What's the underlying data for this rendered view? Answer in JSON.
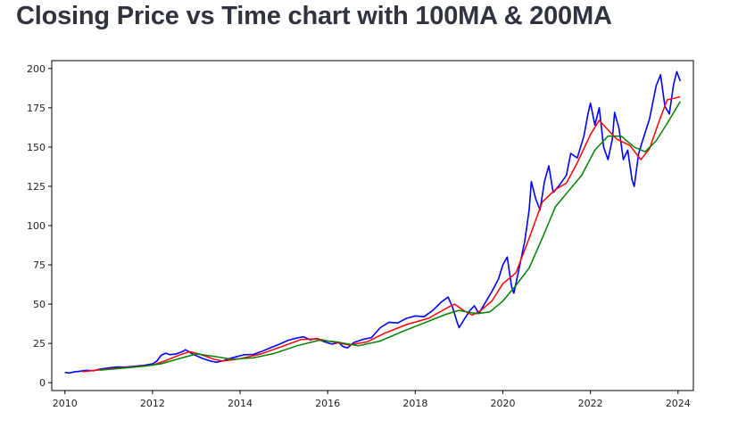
{
  "page": {
    "title": "Closing Price vs Time chart with 100MA & 200MA"
  },
  "chart_data": {
    "type": "line",
    "title": "",
    "xlabel": "",
    "ylabel": "",
    "xlim": [
      2009.7,
      2024.35
    ],
    "ylim": [
      -5,
      205
    ],
    "x_ticks": [
      2010,
      2012,
      2014,
      2016,
      2018,
      2020,
      2022,
      2024
    ],
    "y_ticks": [
      0,
      25,
      50,
      75,
      100,
      125,
      150,
      175,
      200
    ],
    "grid": false,
    "legend": "none",
    "series": [
      {
        "color": "#0000ff",
        "points": [
          [
            2010.0,
            6.5
          ],
          [
            2010.1,
            6.2
          ],
          [
            2010.2,
            6.8
          ],
          [
            2010.35,
            7.3
          ],
          [
            2010.5,
            7.9
          ],
          [
            2010.65,
            7.6
          ],
          [
            2010.8,
            8.6
          ],
          [
            2011.0,
            9.4
          ],
          [
            2011.2,
            10.0
          ],
          [
            2011.4,
            9.9
          ],
          [
            2011.6,
            10.5
          ],
          [
            2011.8,
            11.0
          ],
          [
            2012.0,
            12.0
          ],
          [
            2012.1,
            13.8
          ],
          [
            2012.2,
            17.5
          ],
          [
            2012.3,
            18.8
          ],
          [
            2012.4,
            17.8
          ],
          [
            2012.55,
            18.4
          ],
          [
            2012.7,
            20.0
          ],
          [
            2012.75,
            21.0
          ],
          [
            2012.9,
            18.5
          ],
          [
            2013.0,
            17.2
          ],
          [
            2013.15,
            15.4
          ],
          [
            2013.3,
            14.0
          ],
          [
            2013.45,
            13.0
          ],
          [
            2013.6,
            13.8
          ],
          [
            2013.75,
            15.3
          ],
          [
            2013.95,
            16.8
          ],
          [
            2014.1,
            17.8
          ],
          [
            2014.3,
            18.0
          ],
          [
            2014.5,
            20.0
          ],
          [
            2014.7,
            22.3
          ],
          [
            2014.9,
            24.5
          ],
          [
            2015.1,
            27.0
          ],
          [
            2015.3,
            28.5
          ],
          [
            2015.45,
            29.2
          ],
          [
            2015.6,
            27.3
          ],
          [
            2015.75,
            28.2
          ],
          [
            2015.9,
            26.3
          ],
          [
            2016.1,
            24.5
          ],
          [
            2016.25,
            25.6
          ],
          [
            2016.35,
            23.0
          ],
          [
            2016.45,
            22.2
          ],
          [
            2016.6,
            25.6
          ],
          [
            2016.8,
            27.5
          ],
          [
            2017.0,
            28.7
          ],
          [
            2017.2,
            35.0
          ],
          [
            2017.4,
            38.5
          ],
          [
            2017.6,
            38.0
          ],
          [
            2017.8,
            41.0
          ],
          [
            2018.0,
            42.5
          ],
          [
            2018.2,
            42.0
          ],
          [
            2018.4,
            46.0
          ],
          [
            2018.6,
            51.5
          ],
          [
            2018.75,
            54.5
          ],
          [
            2018.85,
            48.0
          ],
          [
            2018.95,
            39.0
          ],
          [
            2019.0,
            35.0
          ],
          [
            2019.1,
            39.5
          ],
          [
            2019.25,
            46.0
          ],
          [
            2019.35,
            49.0
          ],
          [
            2019.45,
            44.0
          ],
          [
            2019.6,
            51.0
          ],
          [
            2019.75,
            58.0
          ],
          [
            2019.9,
            66.0
          ],
          [
            2020.0,
            75.0
          ],
          [
            2020.1,
            80.0
          ],
          [
            2020.2,
            61.0
          ],
          [
            2020.25,
            57.0
          ],
          [
            2020.35,
            70.0
          ],
          [
            2020.5,
            90.0
          ],
          [
            2020.6,
            110.0
          ],
          [
            2020.65,
            128.0
          ],
          [
            2020.75,
            117.0
          ],
          [
            2020.85,
            110.0
          ],
          [
            2020.95,
            128.0
          ],
          [
            2021.05,
            138.0
          ],
          [
            2021.15,
            121.0
          ],
          [
            2021.3,
            126.0
          ],
          [
            2021.45,
            132.0
          ],
          [
            2021.55,
            146.0
          ],
          [
            2021.7,
            143.0
          ],
          [
            2021.85,
            157.0
          ],
          [
            2021.95,
            172.0
          ],
          [
            2022.0,
            178.0
          ],
          [
            2022.1,
            164.0
          ],
          [
            2022.2,
            175.0
          ],
          [
            2022.3,
            150.0
          ],
          [
            2022.4,
            142.0
          ],
          [
            2022.5,
            155.0
          ],
          [
            2022.55,
            172.0
          ],
          [
            2022.65,
            162.0
          ],
          [
            2022.75,
            142.0
          ],
          [
            2022.85,
            148.0
          ],
          [
            2022.95,
            129.0
          ],
          [
            2023.0,
            125.0
          ],
          [
            2023.1,
            146.0
          ],
          [
            2023.2,
            155.0
          ],
          [
            2023.35,
            168.0
          ],
          [
            2023.5,
            189.0
          ],
          [
            2023.6,
            196.0
          ],
          [
            2023.7,
            176.0
          ],
          [
            2023.8,
            171.0
          ],
          [
            2023.9,
            190.0
          ],
          [
            2023.97,
            198.0
          ],
          [
            2024.05,
            192.0
          ]
        ]
      },
      {
        "color": "#ff0000",
        "points": [
          [
            2010.4,
            7.0
          ],
          [
            2011.0,
            8.8
          ],
          [
            2011.5,
            9.9
          ],
          [
            2012.0,
            11.2
          ],
          [
            2012.3,
            14.0
          ],
          [
            2012.6,
            17.5
          ],
          [
            2012.85,
            19.8
          ],
          [
            2013.1,
            18.0
          ],
          [
            2013.4,
            15.0
          ],
          [
            2013.6,
            13.8
          ],
          [
            2014.0,
            15.2
          ],
          [
            2014.5,
            18.5
          ],
          [
            2015.0,
            23.5
          ],
          [
            2015.4,
            27.5
          ],
          [
            2015.75,
            28.0
          ],
          [
            2016.1,
            26.0
          ],
          [
            2016.5,
            24.0
          ],
          [
            2016.9,
            26.0
          ],
          [
            2017.3,
            31.5
          ],
          [
            2017.8,
            37.0
          ],
          [
            2018.3,
            41.0
          ],
          [
            2018.75,
            48.0
          ],
          [
            2018.9,
            50.0
          ],
          [
            2019.1,
            46.0
          ],
          [
            2019.3,
            43.0
          ],
          [
            2019.5,
            46.0
          ],
          [
            2019.75,
            52.0
          ],
          [
            2020.0,
            63.0
          ],
          [
            2020.3,
            70.0
          ],
          [
            2020.6,
            92.0
          ],
          [
            2020.9,
            115.0
          ],
          [
            2021.2,
            123.0
          ],
          [
            2021.45,
            127.0
          ],
          [
            2021.7,
            140.0
          ],
          [
            2022.0,
            158.0
          ],
          [
            2022.2,
            167.0
          ],
          [
            2022.4,
            161.0
          ],
          [
            2022.6,
            155.0
          ],
          [
            2022.9,
            151.0
          ],
          [
            2023.15,
            142.0
          ],
          [
            2023.35,
            149.0
          ],
          [
            2023.55,
            165.0
          ],
          [
            2023.75,
            180.0
          ],
          [
            2023.9,
            181.0
          ],
          [
            2024.05,
            182.0
          ]
        ]
      },
      {
        "color": "#008000",
        "points": [
          [
            2010.8,
            8.0
          ],
          [
            2011.3,
            9.2
          ],
          [
            2011.8,
            10.5
          ],
          [
            2012.2,
            12.0
          ],
          [
            2012.7,
            16.0
          ],
          [
            2013.0,
            18.3
          ],
          [
            2013.4,
            16.8
          ],
          [
            2013.8,
            15.0
          ],
          [
            2014.3,
            15.8
          ],
          [
            2014.8,
            18.8
          ],
          [
            2015.3,
            23.5
          ],
          [
            2015.8,
            27.0
          ],
          [
            2016.2,
            26.0
          ],
          [
            2016.7,
            23.5
          ],
          [
            2017.2,
            26.5
          ],
          [
            2017.7,
            32.5
          ],
          [
            2018.2,
            38.0
          ],
          [
            2018.7,
            43.5
          ],
          [
            2019.0,
            46.0
          ],
          [
            2019.4,
            44.0
          ],
          [
            2019.7,
            45.0
          ],
          [
            2020.0,
            52.0
          ],
          [
            2020.3,
            62.0
          ],
          [
            2020.6,
            73.0
          ],
          [
            2020.9,
            92.0
          ],
          [
            2021.2,
            112.0
          ],
          [
            2021.5,
            122.0
          ],
          [
            2021.8,
            132.0
          ],
          [
            2022.1,
            148.0
          ],
          [
            2022.4,
            157.0
          ],
          [
            2022.7,
            157.0
          ],
          [
            2023.0,
            150.0
          ],
          [
            2023.25,
            147.0
          ],
          [
            2023.5,
            154.0
          ],
          [
            2023.75,
            165.0
          ],
          [
            2024.05,
            179.0
          ]
        ]
      }
    ]
  }
}
